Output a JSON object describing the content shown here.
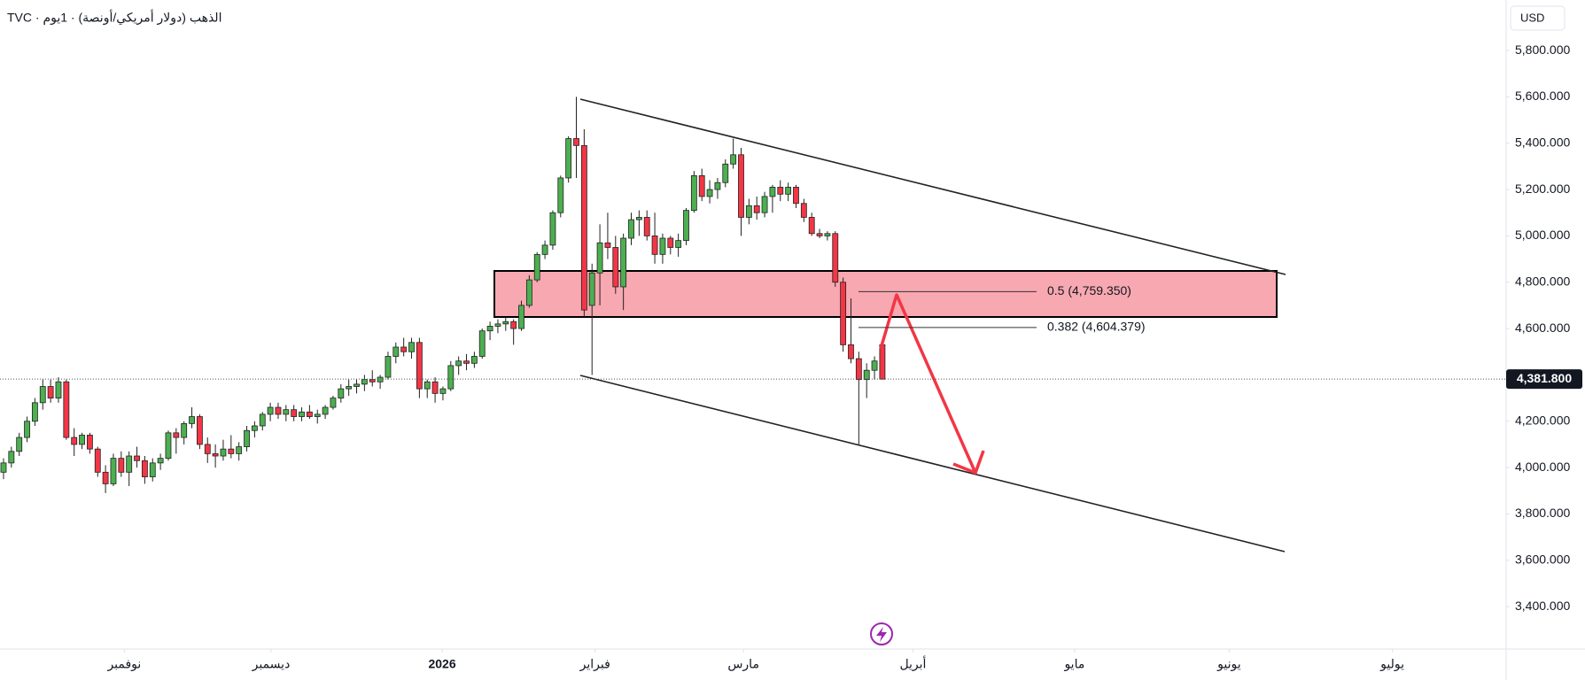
{
  "header": {
    "title": "TVC · الذهب (دولار أمريكي/أونصة) · 1يوم",
    "currency": "USD"
  },
  "chart_data": {
    "type": "candlestick",
    "up_color": "#4caf50",
    "down_color": "#f23645",
    "xlim": [
      -0.45,
      191.5
    ],
    "ylim": [
      3217,
      6018
    ],
    "yticks": [
      {
        "value": 3400,
        "label": "3,400.000"
      },
      {
        "value": 3600,
        "label": "3,600.000"
      },
      {
        "value": 3800,
        "label": "3,800.000"
      },
      {
        "value": 4000,
        "label": "4,000.000"
      },
      {
        "value": 4200,
        "label": "4,200.000"
      },
      {
        "value": 4400,
        "label": "4,400.000"
      },
      {
        "value": 4600,
        "label": "4,600.000"
      },
      {
        "value": 4800,
        "label": "4,800.000"
      },
      {
        "value": 5000,
        "label": "5,000.000"
      },
      {
        "value": 5200,
        "label": "5,200.000"
      },
      {
        "value": 5400,
        "label": "5,400.000"
      },
      {
        "value": 5600,
        "label": "5,600.000"
      },
      {
        "value": 5800,
        "label": "5,800.000"
      }
    ],
    "xticks": [
      {
        "value": 15.4,
        "label": "نوفمبر"
      },
      {
        "value": 34.1,
        "label": "ديسمبر"
      },
      {
        "value": 55.9,
        "label": "2026"
      },
      {
        "value": 75.4,
        "label": "فبراير"
      },
      {
        "value": 94.3,
        "label": "مارس"
      },
      {
        "value": 115.9,
        "label": "أبريل"
      },
      {
        "value": 136.5,
        "label": "مايو"
      },
      {
        "value": 156.2,
        "label": "يونيو"
      },
      {
        "value": 177.0,
        "label": "يوليو"
      }
    ],
    "last_price": {
      "value": 4381.8,
      "label": "4,381.800"
    },
    "levels": [
      {
        "value": 4759.35,
        "label": "0.5 (4,759.350)"
      },
      {
        "value": 4604.379,
        "label": "0.382 (4,604.379)"
      }
    ],
    "candles": [
      [
        3980,
        4040,
        3950,
        4020
      ],
      [
        4020,
        4090,
        4000,
        4070
      ],
      [
        4070,
        4150,
        4050,
        4130
      ],
      [
        4130,
        4220,
        4110,
        4200
      ],
      [
        4200,
        4300,
        4180,
        4280
      ],
      [
        4280,
        4380,
        4250,
        4350
      ],
      [
        4350,
        4380,
        4280,
        4300
      ],
      [
        4300,
        4390,
        4280,
        4370
      ],
      [
        4370,
        4380,
        4120,
        4130
      ],
      [
        4130,
        4170,
        4050,
        4100
      ],
      [
        4100,
        4150,
        4080,
        4140
      ],
      [
        4140,
        4150,
        4060,
        4080
      ],
      [
        4080,
        4090,
        3960,
        3980
      ],
      [
        3980,
        4010,
        3890,
        3930
      ],
      [
        3930,
        4060,
        3920,
        4040
      ],
      [
        4040,
        4070,
        3960,
        3980
      ],
      [
        3980,
        4070,
        3920,
        4050
      ],
      [
        4050,
        4090,
        4000,
        4030
      ],
      [
        4030,
        4050,
        3930,
        3960
      ],
      [
        3960,
        4040,
        3940,
        4020
      ],
      [
        4020,
        4060,
        3990,
        4040
      ],
      [
        4040,
        4160,
        4030,
        4150
      ],
      [
        4150,
        4170,
        4060,
        4130
      ],
      [
        4130,
        4200,
        4100,
        4190
      ],
      [
        4190,
        4260,
        4170,
        4220
      ],
      [
        4220,
        4230,
        4080,
        4100
      ],
      [
        4100,
        4130,
        4020,
        4060
      ],
      [
        4060,
        4100,
        4000,
        4050
      ],
      [
        4050,
        4120,
        4030,
        4080
      ],
      [
        4080,
        4140,
        4040,
        4060
      ],
      [
        4060,
        4110,
        4030,
        4090
      ],
      [
        4090,
        4180,
        4070,
        4160
      ],
      [
        4160,
        4200,
        4130,
        4180
      ],
      [
        4180,
        4240,
        4160,
        4230
      ],
      [
        4230,
        4280,
        4200,
        4260
      ],
      [
        4260,
        4280,
        4210,
        4230
      ],
      [
        4230,
        4270,
        4200,
        4250
      ],
      [
        4250,
        4270,
        4200,
        4220
      ],
      [
        4220,
        4260,
        4200,
        4240
      ],
      [
        4240,
        4270,
        4210,
        4220
      ],
      [
        4220,
        4250,
        4190,
        4230
      ],
      [
        4230,
        4270,
        4210,
        4260
      ],
      [
        4260,
        4310,
        4250,
        4300
      ],
      [
        4300,
        4360,
        4280,
        4340
      ],
      [
        4340,
        4380,
        4310,
        4350
      ],
      [
        4350,
        4380,
        4320,
        4360
      ],
      [
        4360,
        4400,
        4330,
        4380
      ],
      [
        4380,
        4420,
        4350,
        4370
      ],
      [
        4370,
        4400,
        4340,
        4390
      ],
      [
        4390,
        4500,
        4380,
        4480
      ],
      [
        4480,
        4540,
        4450,
        4520
      ],
      [
        4520,
        4560,
        4480,
        4500
      ],
      [
        4500,
        4560,
        4470,
        4540
      ],
      [
        4540,
        4560,
        4300,
        4340
      ],
      [
        4340,
        4380,
        4300,
        4370
      ],
      [
        4370,
        4390,
        4280,
        4320
      ],
      [
        4320,
        4350,
        4290,
        4340
      ],
      [
        4340,
        4460,
        4330,
        4440
      ],
      [
        4440,
        4480,
        4400,
        4460
      ],
      [
        4460,
        4490,
        4420,
        4450
      ],
      [
        4450,
        4500,
        4430,
        4480
      ],
      [
        4480,
        4600,
        4470,
        4590
      ],
      [
        4590,
        4630,
        4550,
        4610
      ],
      [
        4610,
        4640,
        4580,
        4620
      ],
      [
        4620,
        4650,
        4590,
        4630
      ],
      [
        4630,
        4640,
        4530,
        4600
      ],
      [
        4600,
        4720,
        4590,
        4700
      ],
      [
        4700,
        4830,
        4690,
        4810
      ],
      [
        4810,
        4930,
        4800,
        4920
      ],
      [
        4920,
        4980,
        4900,
        4960
      ],
      [
        4960,
        5110,
        4940,
        5100
      ],
      [
        5100,
        5260,
        5080,
        5250
      ],
      [
        5250,
        5430,
        5230,
        5420
      ],
      [
        5420,
        5600,
        5250,
        5390
      ],
      [
        5390,
        5460,
        4650,
        4680
      ],
      [
        4700,
        4880,
        4400,
        4840
      ],
      [
        4840,
        5050,
        4700,
        4970
      ],
      [
        4970,
        5100,
        4900,
        4950
      ],
      [
        4950,
        5000,
        4750,
        4780
      ],
      [
        4780,
        5010,
        4680,
        4990
      ],
      [
        4990,
        5100,
        4960,
        5070
      ],
      [
        5070,
        5110,
        5000,
        5080
      ],
      [
        5080,
        5110,
        4980,
        5000
      ],
      [
        5000,
        5100,
        4880,
        4920
      ],
      [
        4920,
        5010,
        4880,
        4990
      ],
      [
        4990,
        5000,
        4920,
        4950
      ],
      [
        4950,
        5010,
        4910,
        4980
      ],
      [
        4980,
        5120,
        4960,
        5110
      ],
      [
        5110,
        5280,
        5100,
        5260
      ],
      [
        5260,
        5290,
        5150,
        5170
      ],
      [
        5170,
        5240,
        5140,
        5200
      ],
      [
        5200,
        5250,
        5160,
        5230
      ],
      [
        5230,
        5330,
        5210,
        5310
      ],
      [
        5310,
        5420,
        5290,
        5350
      ],
      [
        5350,
        5380,
        5000,
        5080
      ],
      [
        5080,
        5160,
        5050,
        5130
      ],
      [
        5130,
        5170,
        5070,
        5100
      ],
      [
        5100,
        5190,
        5080,
        5170
      ],
      [
        5170,
        5220,
        5100,
        5210
      ],
      [
        5210,
        5240,
        5150,
        5180
      ],
      [
        5180,
        5230,
        5150,
        5210
      ],
      [
        5210,
        5220,
        5120,
        5140
      ],
      [
        5140,
        5160,
        5060,
        5080
      ],
      [
        5080,
        5100,
        5000,
        5010
      ],
      [
        5010,
        5030,
        4990,
        5000
      ],
      [
        5000,
        5020,
        4980,
        5010
      ],
      [
        5010,
        5020,
        4780,
        4800
      ],
      [
        4800,
        4820,
        4500,
        4530
      ],
      [
        4530,
        4730,
        4450,
        4470
      ],
      [
        4470,
        4500,
        4100,
        4380
      ],
      [
        4380,
        4450,
        4300,
        4420
      ],
      [
        4420,
        4480,
        4380,
        4460
      ],
      [
        4530,
        4550,
        4380,
        4381.8
      ]
    ]
  }
}
